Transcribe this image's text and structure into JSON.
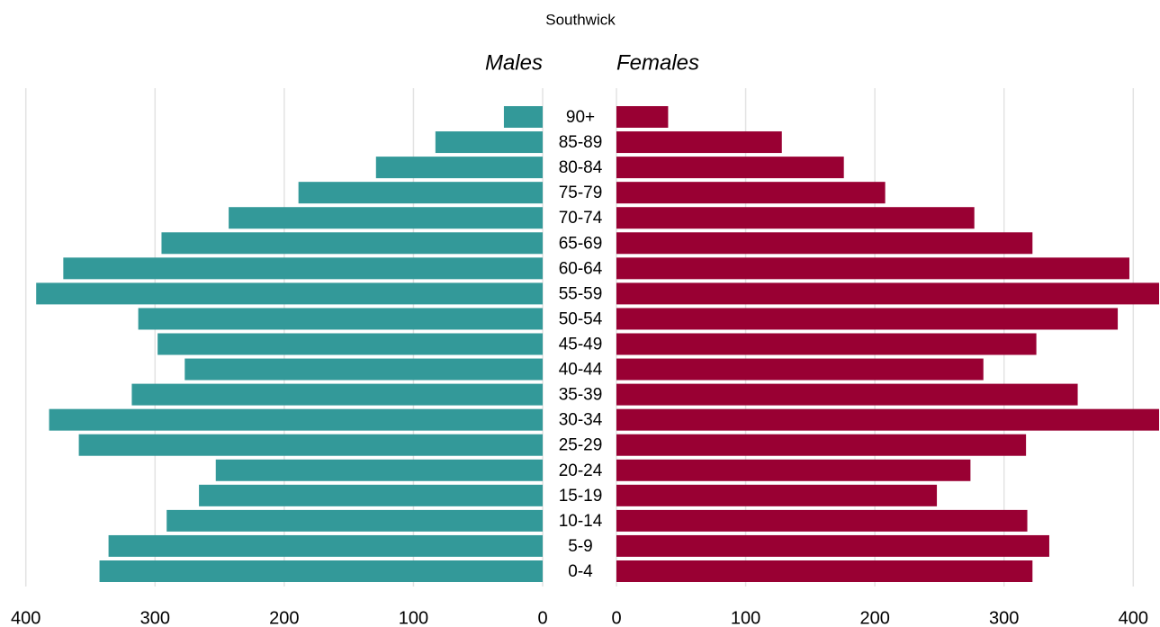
{
  "chart_data": {
    "type": "pyramid",
    "title": "Southwick",
    "categories": [
      "90+",
      "85-89",
      "80-84",
      "75-79",
      "70-74",
      "65-69",
      "60-64",
      "55-59",
      "50-54",
      "45-49",
      "40-44",
      "35-39",
      "30-34",
      "25-29",
      "20-24",
      "15-19",
      "10-14",
      "5-9",
      "0-4"
    ],
    "series": [
      {
        "name": "Males",
        "color": "#339999",
        "values": [
          30,
          83,
          129,
          189,
          243,
          295,
          371,
          392,
          313,
          298,
          277,
          318,
          382,
          359,
          253,
          266,
          291,
          336,
          343
        ]
      },
      {
        "name": "Females",
        "color": "#990033",
        "values": [
          40,
          128,
          176,
          208,
          277,
          322,
          397,
          420,
          388,
          325,
          284,
          357,
          420,
          317,
          274,
          248,
          318,
          335,
          322
        ]
      }
    ],
    "xlim": [
      0,
      420
    ],
    "xticks": [
      0,
      100,
      200,
      300,
      400
    ],
    "grid": true
  }
}
